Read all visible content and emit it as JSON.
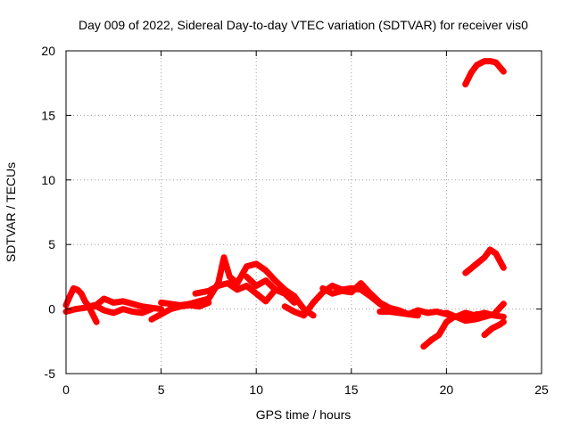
{
  "chart_data": {
    "type": "line",
    "title": "Day 009 of 2022, Sidereal Day-to-day VTEC variation (SDTVAR) for receiver vis0",
    "xlabel": "GPS time / hours",
    "ylabel": "SDTVAR / TECUs",
    "xlim": [
      0,
      25
    ],
    "ylim": [
      -5,
      20
    ],
    "xticks": [
      0,
      5,
      10,
      15,
      20,
      25
    ],
    "yticks": [
      -5,
      0,
      5,
      10,
      15,
      20
    ],
    "xtick_labels": [
      "0",
      "5",
      "10",
      "15",
      "20",
      "25"
    ],
    "ytick_labels": [
      "-5",
      "0",
      "5",
      "10",
      "15",
      "20"
    ],
    "grid": true,
    "series_color": "#ff0000",
    "series": [
      {
        "name": "satellite-track-a",
        "x": [
          0.0,
          0.2,
          0.4,
          0.6,
          0.8,
          1.0,
          1.2,
          1.4,
          1.6
        ],
        "y": [
          0.3,
          1.0,
          1.6,
          1.5,
          1.2,
          0.6,
          0.2,
          -0.4,
          -1.0
        ]
      },
      {
        "name": "satellite-track-b",
        "x": [
          0.0,
          0.5,
          1.0,
          1.5,
          2.0,
          2.5,
          3.0,
          3.5,
          4.0,
          4.5
        ],
        "y": [
          -0.2,
          0.0,
          0.1,
          0.3,
          -0.1,
          -0.3,
          0.0,
          -0.2,
          -0.3,
          0.0
        ]
      },
      {
        "name": "satellite-track-c",
        "x": [
          1.5,
          2.0,
          2.5,
          3.0,
          3.5,
          4.0,
          4.5,
          5.0
        ],
        "y": [
          0.2,
          0.8,
          0.5,
          0.6,
          0.4,
          0.2,
          0.1,
          0.0
        ]
      },
      {
        "name": "satellite-track-d",
        "x": [
          4.5,
          5.0,
          5.5,
          6.0,
          6.5,
          7.0,
          7.5
        ],
        "y": [
          -0.8,
          -0.4,
          0.0,
          0.2,
          0.3,
          0.2,
          0.5
        ]
      },
      {
        "name": "satellite-track-e",
        "x": [
          5.0,
          5.5,
          6.0,
          6.5,
          7.0,
          7.5,
          8.0,
          8.3,
          8.6,
          9.0,
          9.5,
          10.0,
          10.5,
          11.0,
          11.5,
          12.0
        ],
        "y": [
          0.5,
          0.4,
          0.3,
          0.4,
          0.6,
          0.8,
          2.0,
          4.0,
          2.5,
          2.0,
          3.3,
          3.5,
          3.0,
          2.2,
          1.5,
          1.0
        ]
      },
      {
        "name": "satellite-track-f",
        "x": [
          6.8,
          7.5,
          8.0,
          8.5,
          9.0,
          9.5,
          10.0,
          10.5,
          11.0,
          11.5,
          12.0
        ],
        "y": [
          1.2,
          1.4,
          1.8,
          2.0,
          1.5,
          1.8,
          1.2,
          0.6,
          1.5,
          1.2,
          0.5
        ]
      },
      {
        "name": "satellite-track-g",
        "x": [
          9.5,
          10.0,
          10.5,
          11.0,
          11.5,
          12.0,
          12.5,
          13.0
        ],
        "y": [
          2.5,
          1.8,
          2.2,
          1.5,
          1.3,
          1.0,
          0.0,
          -0.5
        ]
      },
      {
        "name": "satellite-track-h",
        "x": [
          11.5,
          12.0,
          12.5,
          13.0,
          13.5,
          14.0,
          14.5,
          15.0,
          15.5,
          16.0,
          16.5,
          17.0
        ],
        "y": [
          0.2,
          -0.2,
          -0.5,
          0.5,
          1.3,
          1.8,
          1.5,
          1.6,
          1.5,
          1.0,
          0.4,
          -0.1
        ]
      },
      {
        "name": "satellite-track-i",
        "x": [
          13.5,
          14.0,
          14.5,
          15.0,
          15.5,
          16.0,
          16.5,
          17.0,
          17.5,
          18.0,
          18.5
        ],
        "y": [
          1.6,
          1.2,
          1.4,
          1.3,
          2.0,
          1.2,
          0.5,
          0.1,
          -0.1,
          -0.4,
          -0.5
        ]
      },
      {
        "name": "satellite-track-j",
        "x": [
          16.5,
          17.0,
          17.5,
          18.0,
          18.5,
          19.0,
          19.5,
          20.0,
          20.5,
          21.0,
          21.5,
          22.0,
          22.5,
          23.0
        ],
        "y": [
          -0.2,
          -0.2,
          -0.3,
          -0.4,
          -0.1,
          -0.3,
          -0.2,
          -0.4,
          -0.6,
          -0.3,
          -0.5,
          -0.3,
          -0.5,
          -0.6
        ]
      },
      {
        "name": "satellite-track-k",
        "x": [
          18.8,
          19.2,
          19.6,
          20.0,
          20.4,
          20.8,
          21.2,
          21.6,
          22.0
        ],
        "y": [
          -2.9,
          -2.4,
          -2.0,
          -1.0,
          -0.6,
          -0.5,
          -0.6,
          -0.4,
          -0.6
        ]
      },
      {
        "name": "satellite-track-l",
        "x": [
          20.0,
          20.5,
          21.0,
          21.5,
          22.0,
          22.5,
          23.0
        ],
        "y": [
          -0.3,
          -0.6,
          -0.9,
          -0.8,
          -0.6,
          -0.4,
          0.4
        ]
      },
      {
        "name": "satellite-track-m",
        "x": [
          22.0,
          22.4,
          22.8,
          23.0
        ],
        "y": [
          -2.0,
          -1.5,
          -1.2,
          -1.0
        ]
      },
      {
        "name": "satellite-track-n",
        "x": [
          21.0,
          21.5,
          22.0,
          22.3,
          22.6,
          23.0
        ],
        "y": [
          2.8,
          3.4,
          4.0,
          4.6,
          4.3,
          3.2
        ]
      },
      {
        "name": "satellite-track-o",
        "x": [
          21.0,
          21.3,
          21.6,
          22.0,
          22.3,
          22.6,
          23.0
        ],
        "y": [
          17.4,
          18.3,
          18.9,
          19.2,
          19.2,
          19.1,
          18.4
        ]
      }
    ]
  }
}
